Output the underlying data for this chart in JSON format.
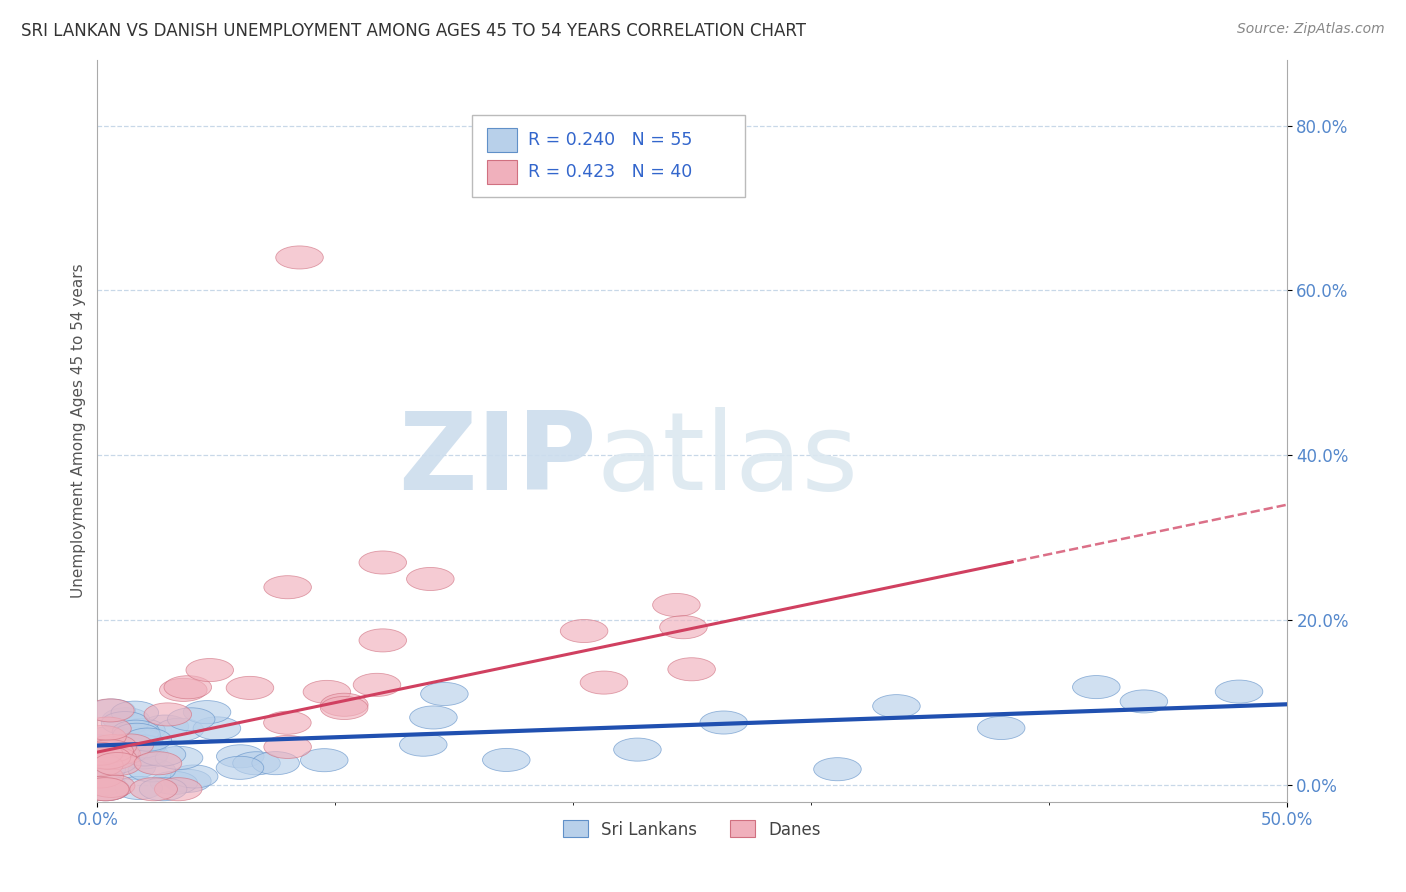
{
  "title": "SRI LANKAN VS DANISH UNEMPLOYMENT AMONG AGES 45 TO 54 YEARS CORRELATION CHART",
  "source": "Source: ZipAtlas.com",
  "ylabel": "Unemployment Among Ages 45 to 54 years",
  "xlim": [
    0.0,
    0.5
  ],
  "ylim": [
    -0.02,
    0.88
  ],
  "xtick_positions": [
    0.0,
    0.5
  ],
  "xtick_labels": [
    "0.0%",
    "50.0%"
  ],
  "ytick_positions": [
    0.0,
    0.2,
    0.4,
    0.6,
    0.8
  ],
  "ytick_labels": [
    "0.0%",
    "20.0%",
    "40.0%",
    "60.0%",
    "80.0%"
  ],
  "legend_r1": "R = 0.240",
  "legend_n1": "N = 55",
  "legend_r2": "R = 0.423",
  "legend_n2": "N = 40",
  "color_srilanka_fill": "#b8d0ea",
  "color_srilanka_edge": "#6090c8",
  "color_danes_fill": "#f0b0bc",
  "color_danes_edge": "#d07080",
  "color_srilanka_line": "#2050b0",
  "color_danes_line": "#d04060",
  "background_color": "#ffffff",
  "sri_lanka_slope": 0.1,
  "sri_lanka_intercept": 0.048,
  "danes_slope": 0.6,
  "danes_intercept": 0.04,
  "fig_width": 14.06,
  "fig_height": 8.92,
  "dpi": 100
}
